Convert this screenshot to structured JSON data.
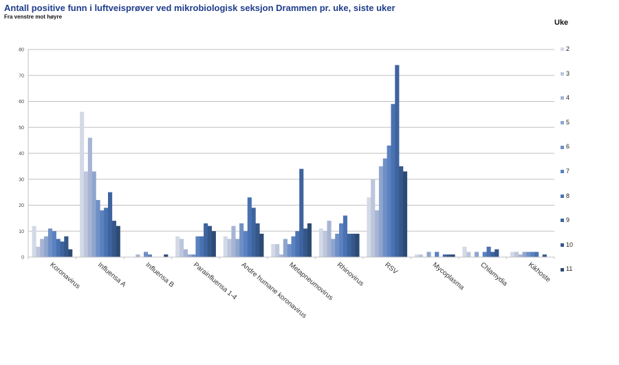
{
  "header": {
    "title": "Antall positive funn i luftveisprøver ved mikrobiologisk seksjon Drammen pr. uke, siste uker",
    "subtitle": "Fra venstre mot høyre"
  },
  "legend": {
    "title": "Uke",
    "items": [
      {
        "label": "2",
        "color": "#d3d9e6"
      },
      {
        "label": "3",
        "color": "#bcc6dc"
      },
      {
        "label": "4",
        "color": "#a7b4d3"
      },
      {
        "label": "5",
        "color": "#8ea6cf"
      },
      {
        "label": "6",
        "color": "#6f8fc6"
      },
      {
        "label": "7",
        "color": "#5b82c0"
      },
      {
        "label": "8",
        "color": "#4a72b2"
      },
      {
        "label": "9",
        "color": "#3e649f"
      },
      {
        "label": "10",
        "color": "#35578a"
      },
      {
        "label": "11",
        "color": "#2d4a75"
      }
    ]
  },
  "chart_data": {
    "type": "bar",
    "title": "Antall positive funn i luftveisprøver ved mikrobiologisk seksjon Drammen pr. uke, siste uker",
    "subtitle": "Fra venstre mot høyre",
    "xlabel": "",
    "ylabel": "",
    "ylim": [
      0,
      80
    ],
    "yticks": [
      0,
      10,
      20,
      30,
      40,
      50,
      60,
      70,
      80
    ],
    "grid": true,
    "legend_position": "right",
    "legend_title": "Uke",
    "categories": [
      "Koronavirus",
      "Influensa A",
      "Influensa B",
      "Parainfluensa 1-4",
      "Andre humane koronavirus",
      "Metapneumovirus",
      "Rhinovirus",
      "RSV",
      "Mycoplasma",
      "Chlamydia",
      "Kikhoste"
    ],
    "series": [
      {
        "name": "2",
        "values": [
          12,
          56,
          0,
          8,
          8,
          5,
          11,
          23,
          1,
          4,
          2
        ]
      },
      {
        "name": "3",
        "values": [
          4,
          33,
          0,
          7,
          7,
          5,
          10,
          30,
          1,
          2,
          2
        ]
      },
      {
        "name": "4",
        "values": [
          7,
          46,
          1,
          3,
          12,
          1,
          14,
          18,
          0,
          0,
          1
        ]
      },
      {
        "name": "5",
        "values": [
          8,
          33,
          0,
          1,
          7,
          7,
          7,
          35,
          2,
          2,
          2
        ]
      },
      {
        "name": "6",
        "values": [
          11,
          22,
          2,
          1,
          13,
          5,
          9,
          38,
          0,
          0,
          2
        ]
      },
      {
        "name": "7",
        "values": [
          10,
          18,
          1,
          8,
          10,
          8,
          13,
          43,
          2,
          2,
          2
        ]
      },
      {
        "name": "8",
        "values": [
          7,
          19,
          0,
          8,
          23,
          10,
          16,
          59,
          0,
          4,
          2
        ]
      },
      {
        "name": "9",
        "values": [
          6,
          25,
          0,
          13,
          19,
          34,
          9,
          74,
          1,
          2,
          0
        ]
      },
      {
        "name": "10",
        "values": [
          8,
          14,
          0,
          12,
          13,
          11,
          9,
          35,
          1,
          3,
          1
        ]
      },
      {
        "name": "11",
        "values": [
          3,
          12,
          1,
          10,
          9,
          13,
          9,
          33,
          1,
          0,
          0
        ]
      }
    ]
  }
}
